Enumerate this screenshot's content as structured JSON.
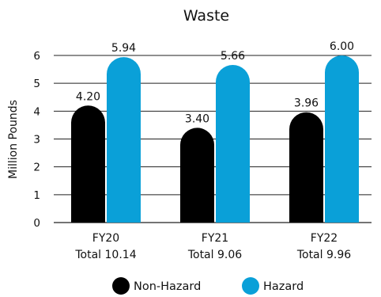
{
  "chart_data": {
    "type": "bar",
    "title": "Waste",
    "ylabel": "Million Pounds",
    "xlabel": "",
    "ylim": [
      0,
      6
    ],
    "yticks": [
      0,
      1,
      2,
      3,
      4,
      5,
      6
    ],
    "grid": true,
    "legend_position": "bottom",
    "categories": [
      {
        "name": "FY20",
        "sub": "Total 10.14"
      },
      {
        "name": "FY21",
        "sub": "Total 9.06"
      },
      {
        "name": "FY22",
        "sub": "Total 9.96"
      }
    ],
    "series": [
      {
        "name": "Non-Hazard",
        "color": "#000000",
        "values": [
          4.2,
          3.4,
          3.96
        ],
        "labels": [
          "4.20",
          "3.40",
          "3.96"
        ]
      },
      {
        "name": "Hazard",
        "color": "#0aa0d8",
        "values": [
          5.94,
          5.66,
          6.0
        ],
        "labels": [
          "5.94",
          "5.66",
          "6.00"
        ]
      }
    ]
  }
}
